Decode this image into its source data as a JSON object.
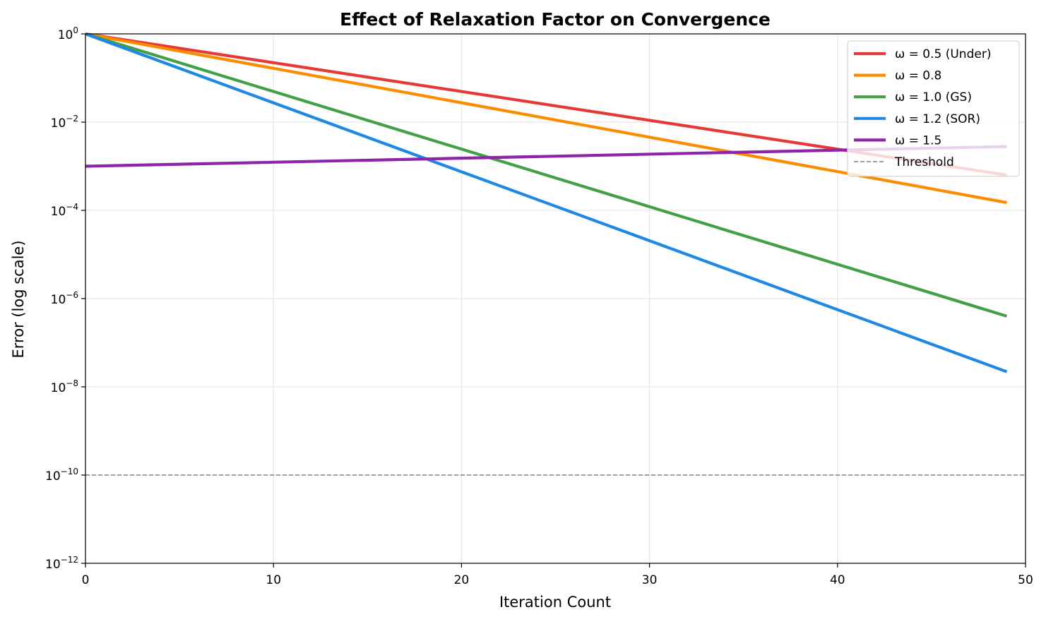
{
  "chart_data": {
    "type": "line",
    "title": "Effect of Relaxation Factor on Convergence",
    "xlabel": "Iteration Count",
    "ylabel": "Error (log scale)",
    "xlim": [
      0,
      50
    ],
    "ylim": [
      1e-12,
      1
    ],
    "yscale": "log",
    "grid": true,
    "legend_position": "top-right",
    "x_ticks": [
      {
        "value": 0,
        "label": "0"
      },
      {
        "value": 10,
        "label": "10"
      },
      {
        "value": 20,
        "label": "20"
      },
      {
        "value": 30,
        "label": "30"
      },
      {
        "value": 40,
        "label": "40"
      },
      {
        "value": 50,
        "label": "50"
      }
    ],
    "y_ticks": [
      {
        "value": 1e-12,
        "base": "10",
        "exp": "−12"
      },
      {
        "value": 1e-10,
        "base": "10",
        "exp": "−10"
      },
      {
        "value": 1e-08,
        "base": "10",
        "exp": "−8"
      },
      {
        "value": 1e-06,
        "base": "10",
        "exp": "−6"
      },
      {
        "value": 0.0001,
        "base": "10",
        "exp": "−4"
      },
      {
        "value": 0.01,
        "base": "10",
        "exp": "−2"
      },
      {
        "value": 1,
        "base": "10",
        "exp": "0"
      }
    ],
    "series": [
      {
        "name": "ω = 0.5 (Under)",
        "color": "#e53935",
        "x": [
          0,
          49
        ],
        "y": [
          1.0,
          0.00063
        ]
      },
      {
        "name": "ω = 0.8",
        "color": "#fb8c00",
        "x": [
          0,
          49
        ],
        "y": [
          1.0,
          0.00015
        ]
      },
      {
        "name": "ω = 1.0 (GS)",
        "color": "#43a047",
        "x": [
          0,
          49
        ],
        "y": [
          1.0,
          4e-07
        ]
      },
      {
        "name": "ω = 1.2 (SOR)",
        "color": "#1e88e5",
        "x": [
          0,
          49
        ],
        "y": [
          1.0,
          2.2e-08
        ]
      },
      {
        "name": "ω = 1.5",
        "color": "#8e24aa",
        "x": [
          0,
          49
        ],
        "y": [
          0.001,
          0.0028
        ]
      }
    ],
    "reference_lines": [
      {
        "name": "Threshold",
        "y": 1e-10,
        "color": "#808080",
        "style": "dashed"
      }
    ]
  }
}
